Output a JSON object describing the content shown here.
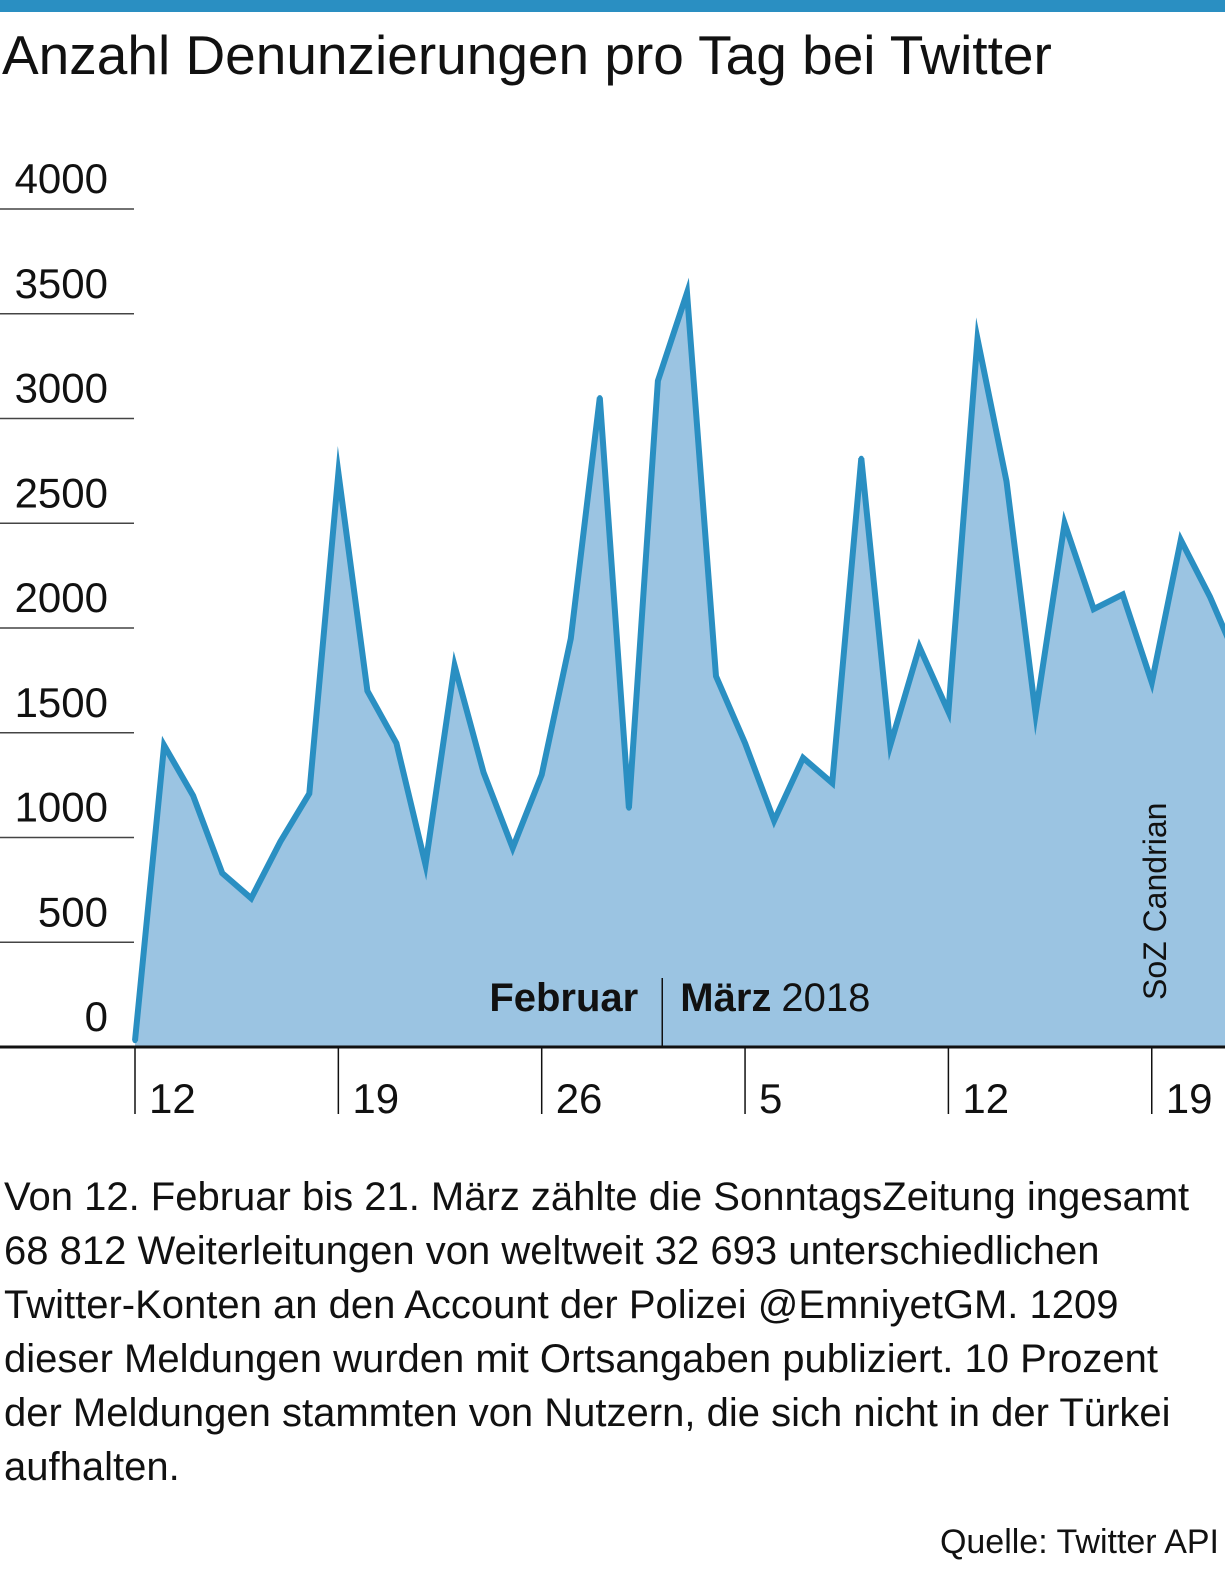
{
  "colors": {
    "accent": "#2a8fc2",
    "fill": "#9bc4e2",
    "ink": "#111111"
  },
  "header": {
    "title": "Anzahl Denunzierungen pro Tag bei Twitter"
  },
  "chart_data": {
    "type": "area",
    "title": "Anzahl Denunzierungen pro Tag bei Twitter",
    "xlabel": "",
    "ylabel": "",
    "ylim": [
      0,
      4000
    ],
    "yticks": [
      "0",
      "500",
      "1000",
      "1500",
      "2000",
      "2500",
      "3000",
      "3500",
      "4000"
    ],
    "ytick_values": [
      0,
      500,
      1000,
      1500,
      2000,
      2500,
      3000,
      3500,
      4000
    ],
    "x_day_start": 11,
    "xticks": [
      "12",
      "19",
      "26",
      "5",
      "12",
      "19"
    ],
    "xtick_days": [
      12,
      19,
      26,
      33,
      40,
      47
    ],
    "month_separator_day": 29.15,
    "months": {
      "feb": "Februar",
      "mar": "März",
      "year": "2018"
    },
    "annotation": "SoZ Candrian",
    "series": [
      {
        "name": "Denunzierungen pro Tag",
        "x": [
          11,
          12,
          13,
          14,
          15,
          16,
          17,
          18,
          19,
          20,
          21,
          22,
          23,
          24,
          25,
          26,
          27,
          28,
          29,
          30,
          31,
          32,
          33,
          34,
          35,
          36,
          37,
          38,
          39,
          40,
          41,
          42,
          43,
          44,
          45,
          46,
          47,
          48,
          49
        ],
        "values": [
          30,
          1440,
          1200,
          830,
          710,
          980,
          1210,
          2740,
          1700,
          1450,
          870,
          1820,
          1310,
          950,
          1300,
          1950,
          3100,
          1140,
          3180,
          3600,
          1770,
          1450,
          1080,
          1380,
          1260,
          2810,
          1440,
          1910,
          1600,
          3380,
          2700,
          1590,
          2500,
          2090,
          2160,
          1740,
          2420,
          2150,
          1830
        ]
      }
    ]
  },
  "caption": "Von 12. Februar bis 21. März zählte die SonntagsZeitung ingesamt 68 812 Weiterleitungen von weltweit 32 693 unterschiedlichen Twitter-Konten an den Account der Polizei @EmniyetGM. 1209 dieser Meldungen wurden mit Ortsangaben publiziert. 10 Prozent der Meldungen stammten von Nutzern, die sich nicht in der Türkei aufhalten.",
  "source": "Quelle: Twitter API"
}
